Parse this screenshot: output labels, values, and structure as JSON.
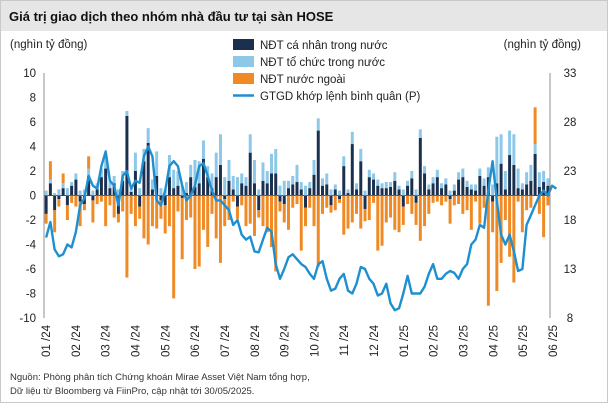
{
  "chart_data": {
    "type": "bar",
    "title": "Giá trị giao dịch theo nhóm nhà đầu tư tại sàn HOSE",
    "ylabel_left": "(nghìn tỷ đồng)",
    "ylabel_right": "(nghìn tỷ đồng)",
    "ylim_left": [
      -10,
      10
    ],
    "ylim_right": [
      8,
      33
    ],
    "yticks_left": [
      "10",
      "8",
      "6",
      "4",
      "2",
      "0",
      "-2",
      "-4",
      "-6",
      "-8",
      "-10"
    ],
    "yticks_right": [
      "33",
      "28",
      "23",
      "18",
      "13",
      "8"
    ],
    "x_tick_labels": [
      "01 /24",
      "02 /24",
      "03 /24",
      "04 /24",
      "05 /24",
      "06 /24",
      "07 /24",
      "08 /24",
      "09 /24",
      "10 /24",
      "11 /24",
      "12 /24",
      "01 /25",
      "02 /25",
      "03 /25",
      "04 /25",
      "05 /25",
      "06 /25"
    ],
    "legend_position": "top-right",
    "series": [
      {
        "name": "NĐT cá nhân trong nước",
        "type": "stacked-bar",
        "color": "#1b2f4f",
        "values": [
          -1.5,
          1.0,
          -1.2,
          -0.3,
          0.6,
          -0.8,
          0.8,
          1.3,
          -0.5,
          -0.7,
          1.6,
          -0.4,
          0.5,
          1.5,
          2.2,
          0.6,
          1.0,
          -1.5,
          1.2,
          6.5,
          0.3,
          2.0,
          -0.9,
          2.8,
          4.3,
          0.5,
          1.6,
          -0.4,
          -0.8,
          1.5,
          0.6,
          0.8,
          -0.2,
          0.2,
          1.5,
          0.7,
          1.0,
          3.0,
          1.5,
          0.6,
          1.5,
          2.5,
          -0.3,
          1.2,
          0.5,
          -0.9,
          1.0,
          0.8,
          3.5,
          1.0,
          -1.2,
          1.2,
          1.0,
          1.8,
          1.8,
          -0.5,
          -0.7,
          0.6,
          0.9,
          1.1,
          0.5,
          -1.0,
          0.6,
          1.7,
          5.3,
          0.8,
          0.9,
          -0.8,
          0.5,
          -0.3,
          2.4,
          0.2,
          4.2,
          0.5,
          2.8,
          -1.1,
          1.5,
          1.3,
          0.8,
          0.6,
          0.6,
          0.7,
          1.2,
          0.5,
          -0.9,
          0.8,
          1.4,
          -0.6,
          4.7,
          1.8,
          0.5,
          1.0,
          1.5,
          0.6,
          0.9,
          -0.3,
          0.4,
          1.3,
          1.5,
          0.7,
          0.5,
          0.4,
          1.6,
          0.8,
          1.5,
          -0.5,
          1.0,
          2.6,
          0.5,
          3.3,
          2.5,
          0.6,
          0.5,
          0.9,
          1.2,
          3.4,
          0.7,
          1.1,
          0.8
        ]
      },
      {
        "name": "NĐT tổ chức trong nước",
        "type": "stacked-bar",
        "color": "#8ec8e8",
        "values": [
          0.4,
          0.3,
          0.2,
          0.5,
          0.4,
          0.6,
          0.3,
          0.5,
          0.4,
          0.5,
          0.6,
          0.4,
          0.5,
          0.7,
          1.0,
          0.5,
          0.6,
          0.5,
          0.8,
          0.4,
          0.3,
          1.5,
          0.6,
          1.0,
          1.2,
          0.8,
          2.0,
          0.6,
          0.5,
          1.8,
          1.5,
          1.2,
          0.8,
          0.9,
          1.0,
          2.2,
          1.8,
          1.5,
          0.9,
          1.2,
          2.0,
          2.5,
          1.5,
          1.7,
          1.1,
          1.5,
          0.8,
          0.7,
          1.5,
          1.9,
          0.5,
          1.5,
          1.0,
          1.6,
          2.0,
          0.8,
          1.2,
          0.6,
          0.7,
          1.4,
          0.6,
          0.8,
          0.5,
          1.2,
          1.0,
          0.6,
          0.9,
          0.5,
          0.4,
          0.4,
          0.8,
          0.3,
          1.0,
          0.5,
          1.0,
          0.4,
          0.6,
          0.5,
          0.5,
          0.4,
          0.5,
          0.4,
          0.7,
          0.3,
          0.5,
          0.4,
          0.6,
          0.5,
          0.7,
          0.6,
          0.4,
          0.5,
          0.6,
          0.4,
          0.5,
          0.4,
          0.5,
          0.6,
          0.7,
          0.5,
          0.4,
          0.5,
          0.6,
          0.6,
          0.8,
          0.9,
          3.8,
          2.4,
          1.5,
          2.0,
          2.5,
          1.6,
          0.5,
          1.0,
          1.3,
          0.8,
          1.2,
          0.9,
          0.6
        ]
      },
      {
        "name": "NĐT nước ngoài",
        "type": "stacked-bar",
        "color": "#f08a24",
        "values": [
          -0.8,
          1.5,
          -1.8,
          -0.6,
          0.8,
          -1.2,
          -0.6,
          -0.9,
          -2.0,
          -0.5,
          1.0,
          -1.8,
          -0.7,
          -0.5,
          -2.5,
          -0.8,
          -1.8,
          -0.7,
          -1.3,
          -6.7,
          -1.5,
          -2.5,
          -1.0,
          -3.5,
          -4.0,
          -2.5,
          -2.7,
          -1.5,
          -2.3,
          -2.5,
          -8.4,
          -1.3,
          -5.0,
          -2.0,
          -1.8,
          -6.0,
          -5.8,
          -2.8,
          -4.2,
          -1.5,
          -3.5,
          -5.5,
          -2.2,
          -2.0,
          -0.5,
          -1.0,
          -0.8,
          -2.5,
          -2.3,
          -3.3,
          -0.6,
          -2.5,
          -3.0,
          -4.2,
          -6.2,
          -0.8,
          -1.5,
          -2.8,
          -1.0,
          -0.7,
          -4.5,
          -1.5,
          -1.0,
          -2.5,
          -5.8,
          -1.5,
          -1.0,
          -0.6,
          -1.2,
          -0.3,
          -3.2,
          -2.7,
          -2.2,
          -1.5,
          -2.7,
          -1.0,
          -2.0,
          -0.6,
          -4.5,
          -4.1,
          -2.2,
          -1.8,
          -2.8,
          -3.0,
          -1.5,
          -0.7,
          -1.5,
          -1.8,
          -3.7,
          -2.5,
          -1.5,
          -0.6,
          -0.5,
          -0.8,
          -0.5,
          -2.0,
          -0.8,
          -0.7,
          -1.5,
          -1.2,
          -2.8,
          -0.5,
          -2.3,
          -1.0,
          -9.0,
          -2.5,
          -7.8,
          -5.5,
          -2.0,
          -5.0,
          -7.1,
          -0.5,
          -3.0,
          -1.2,
          -1.0,
          3.0,
          -1.5,
          -3.4,
          -0.8
        ]
      },
      {
        "name": "GTGD khớp lệnh bình quân (P)",
        "type": "line",
        "axis": "right",
        "color": "#1e8fd0",
        "values": [
          16.2,
          17.8,
          15.0,
          14.3,
          14.5,
          15.5,
          15.2,
          16.8,
          19.5,
          20.2,
          22.5,
          21.5,
          21.2,
          23.5,
          25.0,
          22.0,
          21.5,
          19.5,
          22.5,
          23.0,
          21.2,
          22.0,
          21.8,
          24.5,
          25.5,
          24.5,
          20.0,
          19.5,
          21.0,
          23.5,
          24.0,
          23.5,
          21.5,
          20.0,
          20.5,
          21.5,
          23.5,
          23.8,
          22.5,
          21.0,
          20.0,
          20.0,
          19.5,
          19.0,
          17.5,
          18.0,
          16.5,
          16.0,
          16.3,
          14.8,
          14.7,
          16.0,
          17.2,
          16.8,
          13.5,
          12.0,
          13.0,
          14.2,
          14.5,
          14.0,
          13.5,
          13.2,
          12.5,
          12.0,
          13.5,
          13.8,
          12.0,
          10.8,
          11.0,
          12.0,
          12.5,
          10.8,
          10.5,
          11.5,
          13.2,
          13.0,
          12.0,
          11.5,
          10.3,
          10.5,
          11.5,
          9.5,
          8.8,
          9.0,
          10.5,
          12.3,
          10.5,
          10.5,
          10.5,
          11.2,
          12.5,
          13.5,
          12.0,
          12.0,
          12.5,
          12.8,
          12.6,
          12.0,
          13.0,
          13.5,
          15.5,
          16.0,
          17.5,
          17.2,
          21.0,
          24.0,
          20.0,
          16.5,
          15.5,
          16.5,
          14.8,
          12.8,
          13.0,
          17.5,
          18.5,
          19.5,
          20.5,
          21.0,
          20.5,
          21.5,
          21.2
        ]
      }
    ]
  },
  "source_line_1": "Nguồn: Phòng phân tích Chứng khoán Mirae Asset Việt Nam tổng hợp,",
  "source_line_2": "Dữ liệu từ Bloomberg và FiinPro, cập nhật tới 30/05/2025."
}
